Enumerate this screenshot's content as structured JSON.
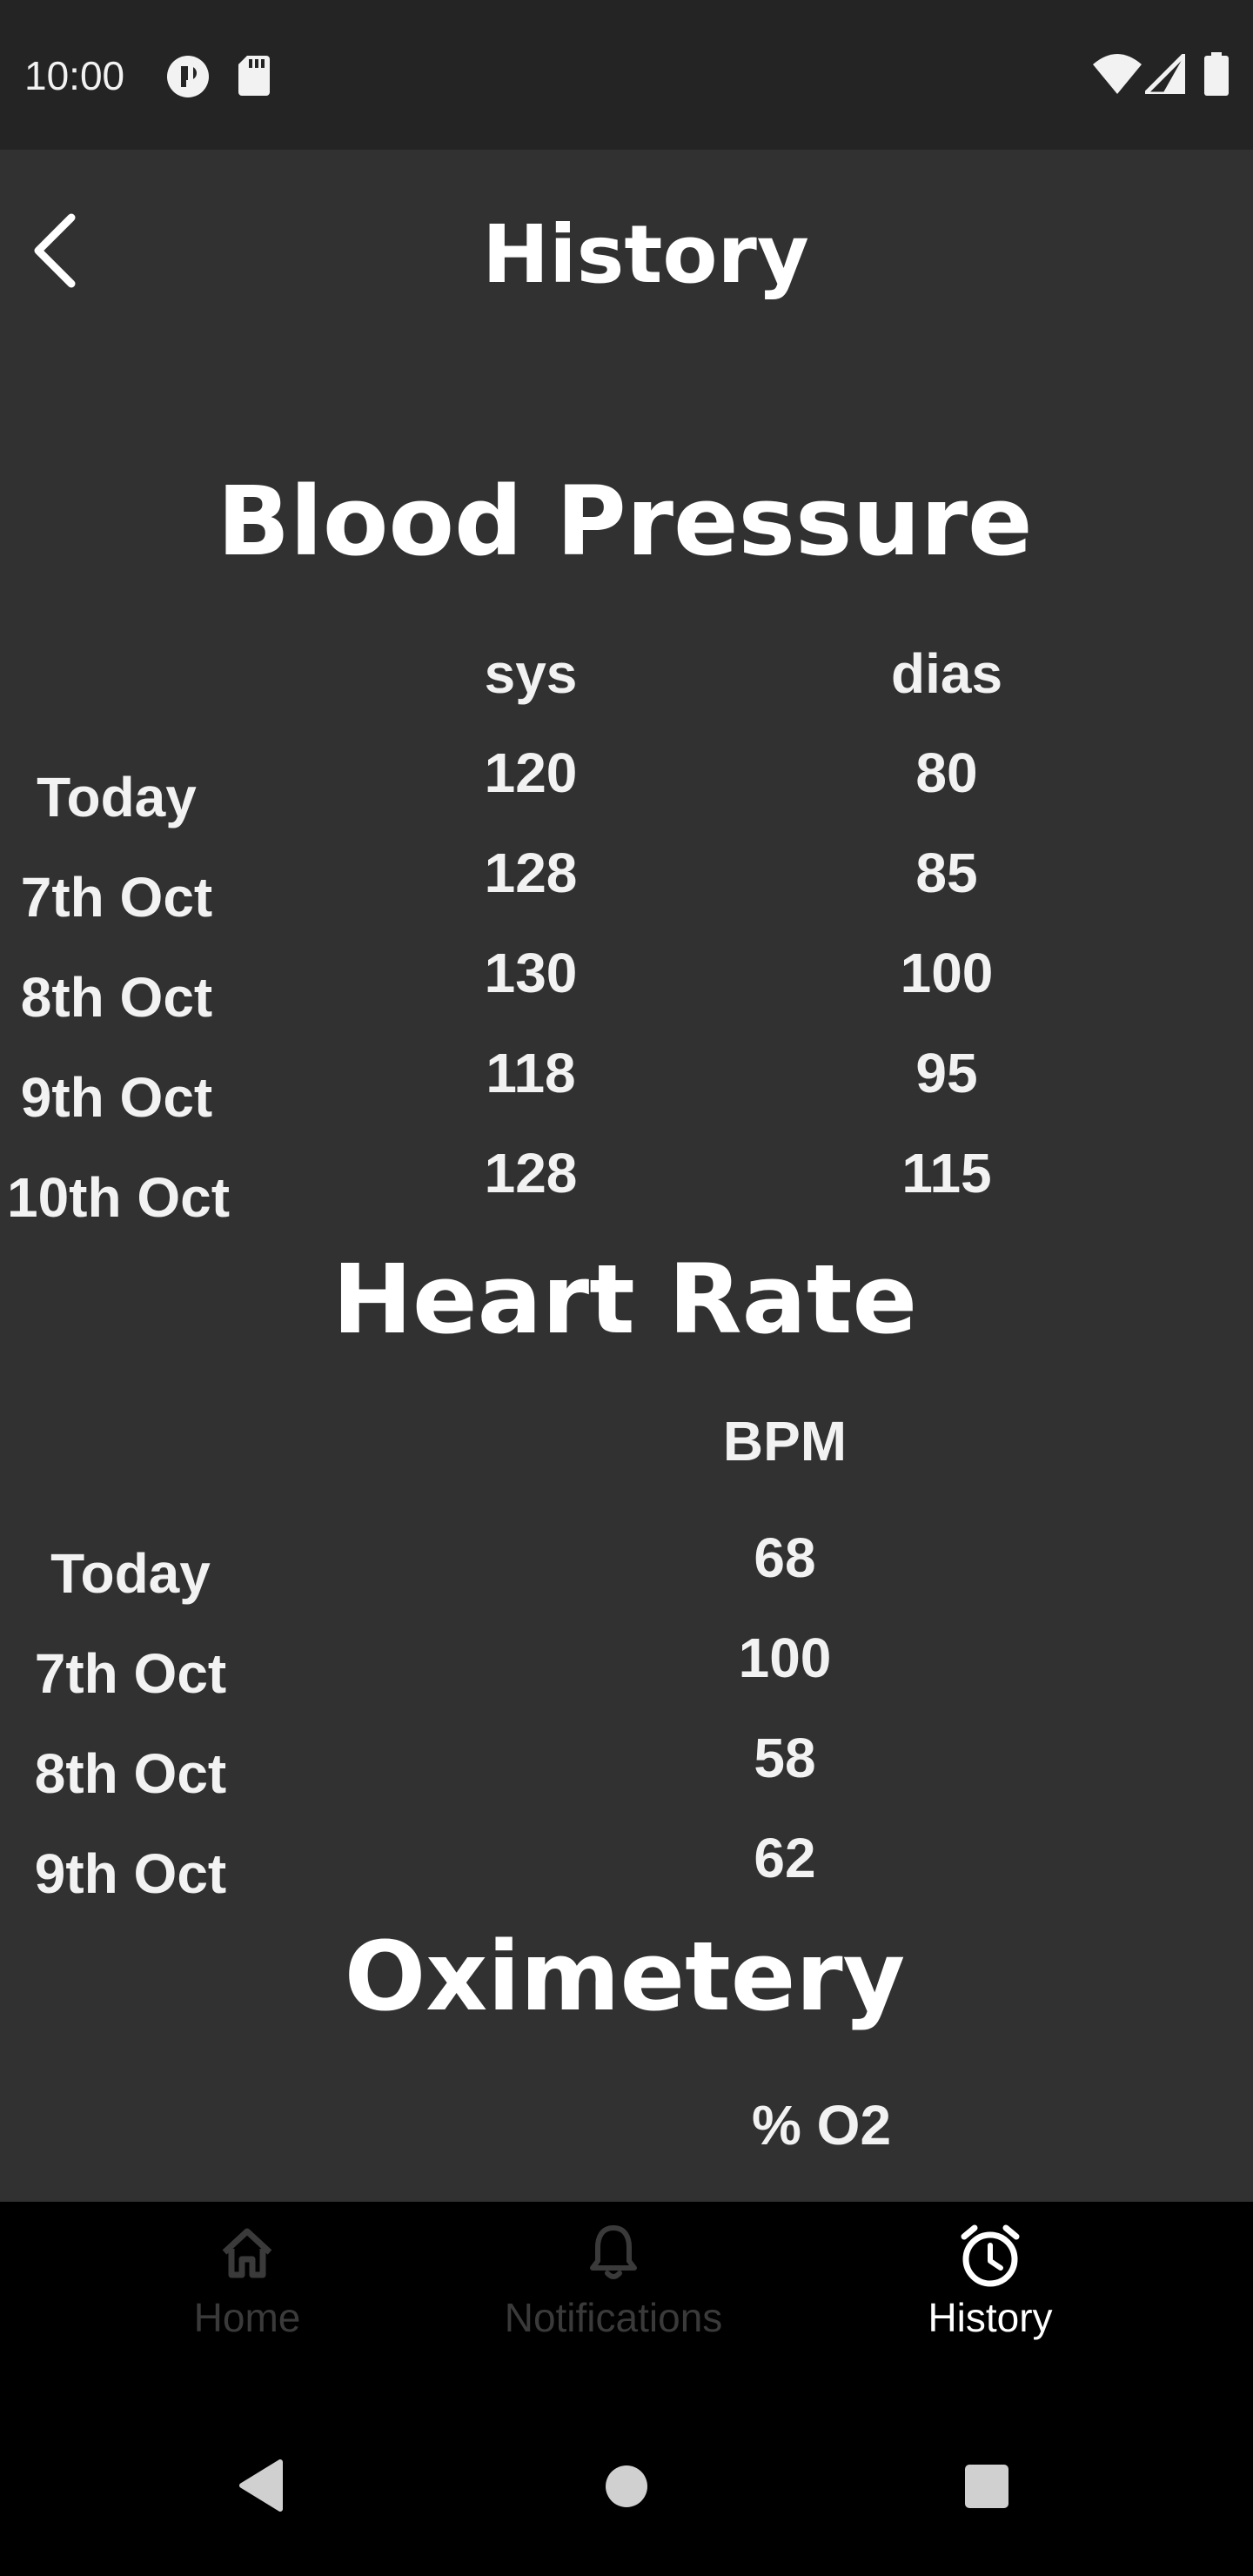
{
  "status_bar": {
    "time": "10:00"
  },
  "header": {
    "title": "History"
  },
  "blood_pressure": {
    "title": "Blood Pressure",
    "col_sys": "sys",
    "col_dias": "dias",
    "rows": [
      {
        "date": "Today",
        "sys": "120",
        "dias": "80"
      },
      {
        "date": "7th Oct",
        "sys": "128",
        "dias": "85"
      },
      {
        "date": "8th Oct",
        "sys": "130",
        "dias": "100"
      },
      {
        "date": "9th Oct",
        "sys": "118",
        "dias": "95"
      },
      {
        "date": "10th Oct",
        "sys": "128",
        "dias": "115"
      }
    ]
  },
  "heart_rate": {
    "title": "Heart Rate",
    "col_bpm": "BPM",
    "rows": [
      {
        "date": "Today",
        "bpm": "68"
      },
      {
        "date": "7th Oct",
        "bpm": "100"
      },
      {
        "date": "8th Oct",
        "bpm": "58"
      },
      {
        "date": "9th Oct",
        "bpm": "62"
      }
    ]
  },
  "oximetery": {
    "title": "Oximetery",
    "col_o2": "% O2"
  },
  "bottom_nav": {
    "items": [
      {
        "label": "Home",
        "icon": "home-icon",
        "active": false
      },
      {
        "label": "Notifications",
        "icon": "bell-icon",
        "active": false
      },
      {
        "label": "History",
        "icon": "alarm-clock-icon",
        "active": true
      }
    ],
    "active_color": "#ffffff",
    "inactive_color": "#3a3a3a"
  },
  "colors": {
    "background": "#313131",
    "status_bar": "#242424",
    "nav_background": "#000000"
  }
}
